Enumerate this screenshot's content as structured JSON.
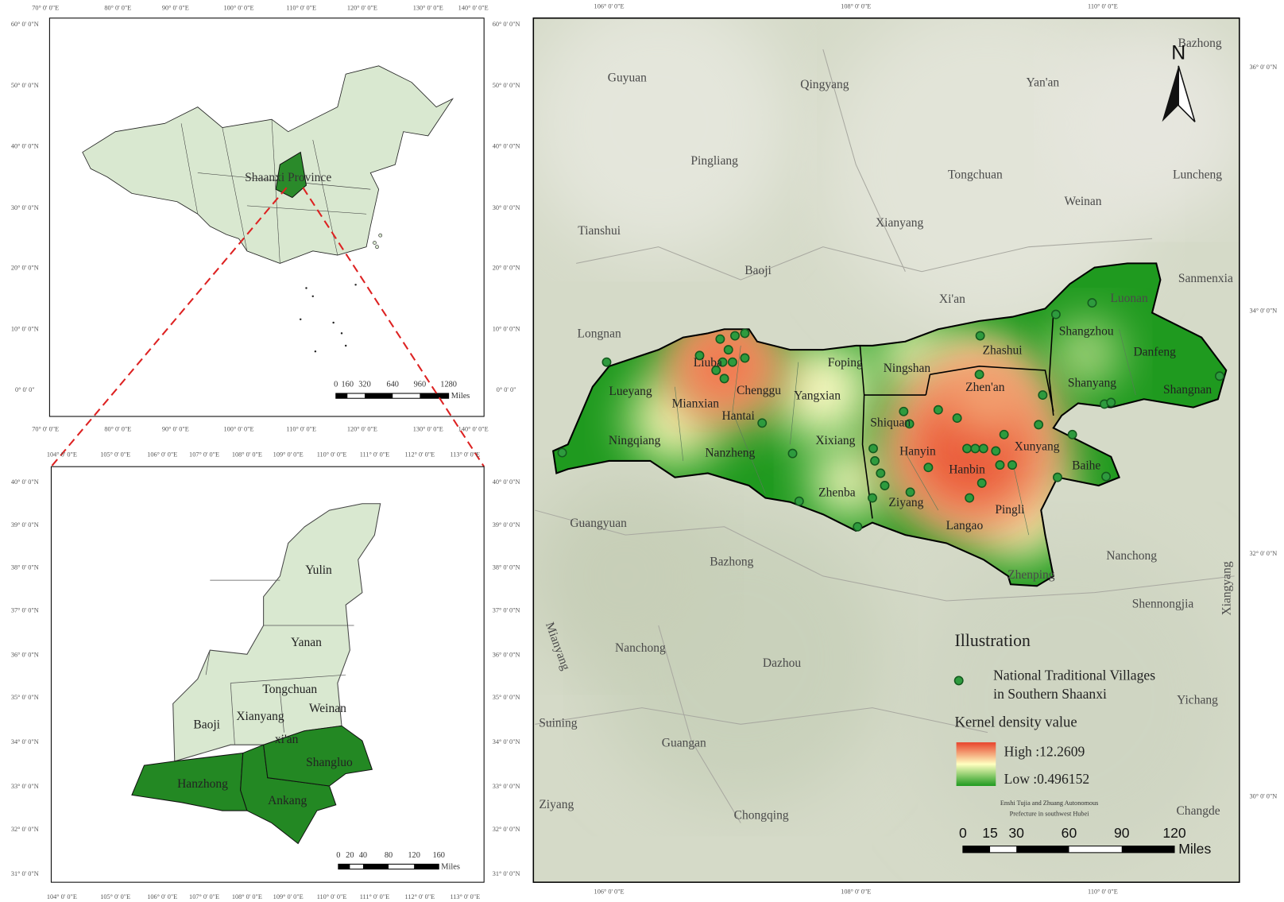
{
  "china_map": {
    "highlight_label": "Shaanxi Province",
    "lon_labels": [
      "70° 0' 0\"E",
      "80° 0' 0\"E",
      "90° 0' 0\"E",
      "100° 0' 0\"E",
      "110° 0' 0\"E",
      "120° 0' 0\"E",
      "130° 0' 0\"E",
      "140° 0' 0\"E"
    ],
    "lat_labels": [
      "60° 0' 0\"N",
      "50° 0' 0\"N",
      "40° 0' 0\"N",
      "30° 0' 0\"N",
      "20° 0' 0\"N",
      "10° 0' 0\"N",
      "0° 0' 0\""
    ],
    "scale_ticks": [
      0,
      160,
      320,
      640,
      960,
      1280
    ],
    "scale_unit": "Miles"
  },
  "shaanxi_map": {
    "region_labels": [
      "Yulin",
      "Yanan",
      "Tongchuan",
      "Weinan",
      "Baoji",
      "Xianyang",
      "xi'an",
      "Shangluo",
      "Hanzhong",
      "Ankang"
    ],
    "lon_labels": [
      "104° 0' 0\"E",
      "105° 0' 0\"E",
      "106° 0' 0\"E",
      "107° 0' 0\"E",
      "108° 0' 0\"E",
      "109° 0' 0\"E",
      "110° 0' 0\"E",
      "111° 0' 0\"E",
      "112° 0' 0\"E",
      "113° 0' 0\"E"
    ],
    "lat_labels": [
      "40° 0' 0\"N",
      "39° 0' 0\"N",
      "38° 0' 0\"N",
      "37° 0' 0\"N",
      "36° 0' 0\"N",
      "35° 0' 0\"N",
      "34° 0' 0\"N",
      "33° 0' 0\"N",
      "32° 0' 0\"N",
      "31° 0' 0\"N"
    ],
    "scale_ticks": [
      0,
      20,
      40,
      80,
      120,
      160
    ],
    "scale_unit": "Miles"
  },
  "main_map": {
    "north": "N",
    "place_labels": [
      "Bazhong",
      "Guyuan",
      "Qingyang",
      "Yan'an",
      "Pingliang",
      "Tongchuan",
      "Luncheng",
      "Weinan",
      "Xianyang",
      "Tianshui",
      "Baoji",
      "Sanmenxia",
      "Xi'an",
      "Luonan",
      "Longnan",
      "Shangzhou",
      "Zhashui",
      "Danfeng",
      "Foping",
      "Ningshan",
      "Lueyang",
      "Liuba",
      "Chenggu",
      "Mianxian",
      "Yangxian",
      "Zhen'an",
      "Shanyang",
      "Shangnan",
      "Hantai",
      "Shiquan",
      "Xunyang",
      "Ningqiang",
      "Xixiang",
      "Nanzheng",
      "Hanyin",
      "Hanbin",
      "Baihe",
      "Zhenba",
      "Ziyang",
      "Pingli",
      "Langao",
      "Guangyuan",
      "Nanchong",
      "Bazhong",
      "Zhenping",
      "Xiangyang",
      "Shennongjia",
      "Nanchong",
      "Dazhou",
      "Mianyang",
      "Yichang",
      "Suining",
      "Guangan",
      "Chongqing",
      "Ziyang",
      "Changde"
    ],
    "lon_labels": [
      "106° 0' 0\"E",
      "108° 0' 0\"E",
      "110° 0' 0\"E"
    ],
    "lat_labels": [
      "36° 0' 0\"N",
      "34° 0' 0\"N",
      "32° 0' 0\"N",
      "30° 0' 0\"N"
    ],
    "legend": {
      "title": "Illustration",
      "point_label_lines": [
        "National Traditional Villages",
        "in Southern Shaanxi"
      ],
      "density_title": "Kernel density value",
      "high": "High :12.2609",
      "low": "Low :0.496152"
    },
    "note_lines": [
      "Enshi Tujia and Zhuang Autonomous",
      "Prefecture in southwest Hubei"
    ],
    "scale_ticks": [
      0,
      15,
      30,
      60,
      90,
      120
    ],
    "scale_unit": "Miles"
  }
}
